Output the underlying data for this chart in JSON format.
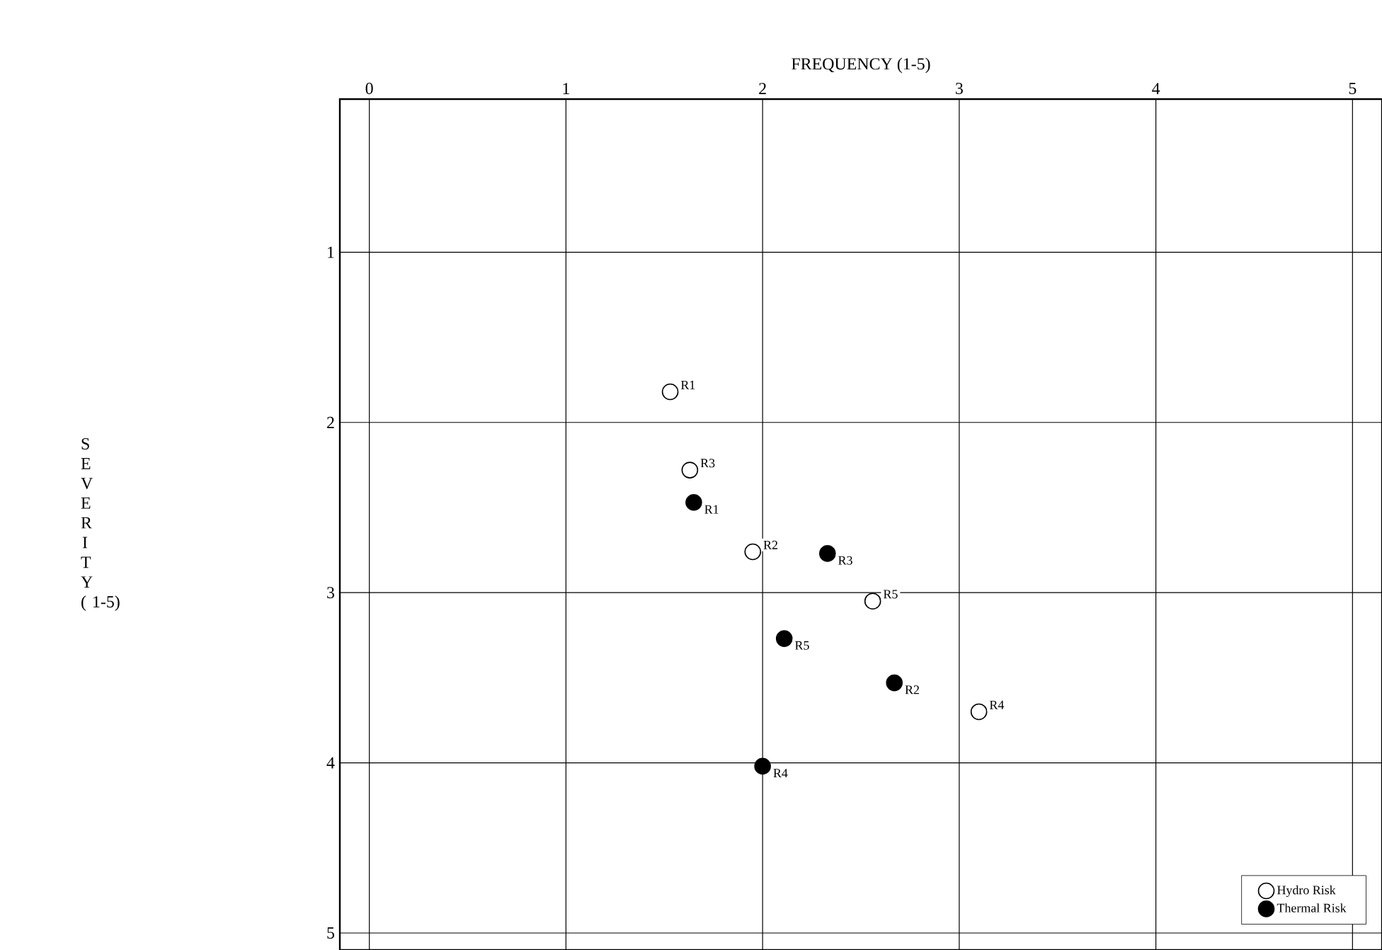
{
  "chart_data": {
    "type": "scatter",
    "xlabel": "FREQUENCY (1-5)",
    "ylabel": "S E V E R I T Y ( 1-5)",
    "xlim": [
      -0.15,
      5.15
    ],
    "ylim": [
      5.1,
      0.1
    ],
    "xticks": [
      0,
      1,
      2,
      3,
      4,
      5
    ],
    "yticks": [
      1,
      2,
      3,
      4,
      5
    ],
    "grid": true,
    "legend": "bottom right",
    "marker": "circle",
    "series": [
      {
        "name": "Hydro Risk",
        "color": "#ffffff",
        "x": [
          1.53,
          1.63,
          1.95,
          2.56,
          3.1
        ],
        "values": [
          1.82,
          2.28,
          2.76,
          3.05,
          3.7
        ],
        "value_labels": [
          "R1",
          "R3",
          "R2",
          "R5",
          "R4"
        ]
      },
      {
        "name": "Thermal Risk",
        "color": "#000000",
        "x": [
          1.65,
          2.33,
          2.11,
          2.67,
          2.0
        ],
        "values": [
          2.47,
          2.77,
          3.27,
          3.53,
          4.02
        ],
        "value_labels": [
          "R1",
          "R3",
          "R5",
          "R2",
          "R4"
        ]
      }
    ]
  }
}
